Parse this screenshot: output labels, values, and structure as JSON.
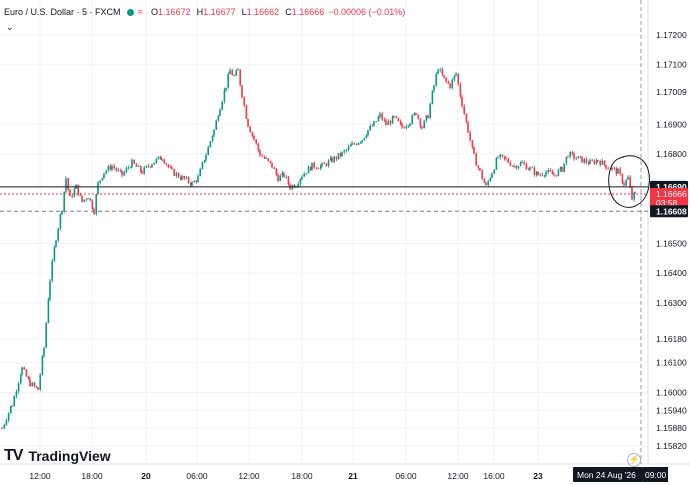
{
  "header": {
    "symbol": "Euro / U.S. Dollar · 5 · FXCM",
    "open_label": "O",
    "open": "1.16672",
    "high_label": "H",
    "high": "1.16677",
    "low_label": "L",
    "low": "1.16662",
    "close_label": "C",
    "close": "1.16666",
    "change": "−0.00006 (−0.01%)",
    "wave_icon": "≈"
  },
  "branding": {
    "name": "TradingView"
  },
  "colors": {
    "up": "#089981",
    "down": "#f23645",
    "grid": "#f0f3fa",
    "label_dark": "#131722",
    "price_red": "#f23645",
    "annotation": "#131722"
  },
  "chart_data": {
    "type": "candlestick",
    "title": "Euro / U.S. Dollar · 5 · FXCM",
    "y_ticks": [
      "1.17200",
      "1.17100",
      "1.16900",
      "1.16800",
      "1.16500",
      "1.16400",
      "1.16300",
      "1.16180",
      "1.16100",
      "1.16000",
      "1.15940",
      "1.15880",
      "1.15820"
    ],
    "x_ticks": [
      "12:00",
      "18:00",
      "20",
      "06:00",
      "12:00",
      "18:00",
      "21",
      "06:00",
      "12:00",
      "16:00",
      "23"
    ],
    "ylim": [
      1.158,
      1.1725
    ],
    "price_labels": [
      {
        "text": "1.17009",
        "style": "plain",
        "price": 1.17009
      },
      {
        "text": "1.16690",
        "style": "dark",
        "price": 1.1669
      },
      {
        "text": "1.16666",
        "style": "red",
        "price": 1.16666
      },
      {
        "text": "03:58",
        "style": "red",
        "price": 1.16636
      },
      {
        "text": "1.16608",
        "style": "dark",
        "price": 1.16608
      }
    ],
    "horizontal_lines": [
      {
        "price": 1.1669,
        "style": "solid",
        "color": "#131722"
      },
      {
        "price": 1.16666,
        "style": "dotted",
        "color": "#f23645"
      },
      {
        "price": 1.16608,
        "style": "dashed",
        "color": "#787b86"
      }
    ],
    "crosshair_time_label": "Mon 24 Aug '26",
    "crosshair_time_value": "09:00",
    "annotation": "hand-drawn circle around latest candles",
    "close_path": [
      [
        0,
        1.1588
      ],
      [
        10,
        1.1596
      ],
      [
        20,
        1.1608
      ],
      [
        28,
        1.1603
      ],
      [
        36,
        1.1601
      ],
      [
        42,
        1.1615
      ],
      [
        48,
        1.1638
      ],
      [
        54,
        1.1652
      ],
      [
        60,
        1.1662
      ],
      [
        64,
        1.1672
      ],
      [
        68,
        1.1665
      ],
      [
        74,
        1.1669
      ],
      [
        80,
        1.1664
      ],
      [
        86,
        1.1666
      ],
      [
        92,
        1.1661
      ],
      [
        96,
        1.167
      ],
      [
        102,
        1.1674
      ],
      [
        110,
        1.1676
      ],
      [
        120,
        1.1673
      ],
      [
        130,
        1.1677
      ],
      [
        140,
        1.1674
      ],
      [
        150,
        1.1677
      ],
      [
        160,
        1.1679
      ],
      [
        170,
        1.1674
      ],
      [
        180,
        1.1672
      ],
      [
        190,
        1.167
      ],
      [
        196,
        1.1672
      ],
      [
        204,
        1.168
      ],
      [
        212,
        1.1688
      ],
      [
        218,
        1.1696
      ],
      [
        224,
        1.1703
      ],
      [
        228,
        1.1708
      ],
      [
        232,
        1.1706
      ],
      [
        236,
        1.1708
      ],
      [
        240,
        1.17
      ],
      [
        246,
        1.169
      ],
      [
        252,
        1.1685
      ],
      [
        258,
        1.168
      ],
      [
        264,
        1.1678
      ],
      [
        270,
        1.1676
      ],
      [
        276,
        1.1672
      ],
      [
        282,
        1.1673
      ],
      [
        288,
        1.1669
      ],
      [
        294,
        1.167
      ],
      [
        300,
        1.1673
      ],
      [
        310,
        1.1676
      ],
      [
        320,
        1.1676
      ],
      [
        330,
        1.1678
      ],
      [
        340,
        1.168
      ],
      [
        350,
        1.1683
      ],
      [
        360,
        1.1685
      ],
      [
        366,
        1.1688
      ],
      [
        372,
        1.169
      ],
      [
        378,
        1.1693
      ],
      [
        384,
        1.169
      ],
      [
        392,
        1.1692
      ],
      [
        400,
        1.1689
      ],
      [
        408,
        1.1691
      ],
      [
        414,
        1.1694
      ],
      [
        420,
        1.1689
      ],
      [
        426,
        1.1693
      ],
      [
        432,
        1.1703
      ],
      [
        436,
        1.1709
      ],
      [
        442,
        1.1705
      ],
      [
        448,
        1.1703
      ],
      [
        454,
        1.1707
      ],
      [
        460,
        1.1697
      ],
      [
        466,
        1.1688
      ],
      [
        472,
        1.1679
      ],
      [
        478,
        1.1674
      ],
      [
        484,
        1.1669
      ],
      [
        490,
        1.1674
      ],
      [
        496,
        1.1679
      ],
      [
        504,
        1.1678
      ],
      [
        512,
        1.1676
      ],
      [
        520,
        1.1677
      ],
      [
        528,
        1.1675
      ],
      [
        536,
        1.1673
      ],
      [
        544,
        1.1674
      ],
      [
        552,
        1.1673
      ],
      [
        560,
        1.1675
      ],
      [
        566,
        1.168
      ],
      [
        572,
        1.1679
      ],
      [
        580,
        1.1678
      ],
      [
        588,
        1.1677
      ],
      [
        596,
        1.1678
      ],
      [
        604,
        1.1676
      ],
      [
        610,
        1.1675
      ],
      [
        616,
        1.1674
      ],
      [
        622,
        1.167
      ],
      [
        626,
        1.1672
      ],
      [
        630,
        1.1665
      ],
      [
        633,
        1.16666
      ]
    ]
  }
}
